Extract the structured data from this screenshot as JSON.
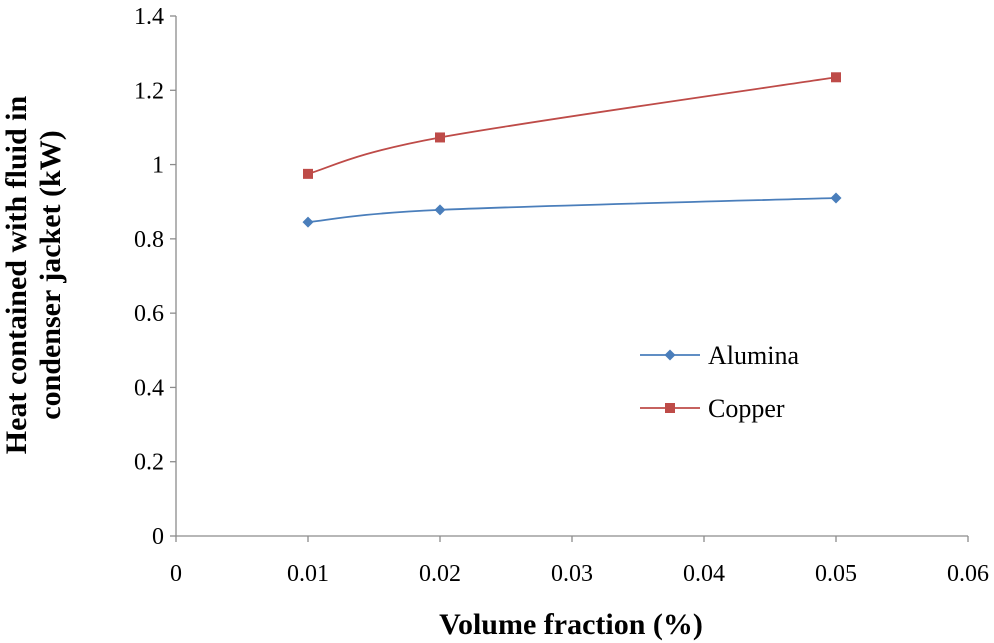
{
  "chart_data": {
    "type": "line",
    "xlabel": "Volume fraction (%)",
    "ylabel": "Heat contained with fluid in condenser jacket (kW)",
    "ylabel_lines": [
      "Heat contained with fluid in",
      "condenser jacket (kW)"
    ],
    "xlim": [
      0,
      0.06
    ],
    "ylim": [
      0,
      1.4
    ],
    "x_ticks": [
      "0",
      "0.01",
      "0.02",
      "0.03",
      "0.04",
      "0.05",
      "0.06"
    ],
    "y_ticks": [
      "0",
      "0.2",
      "0.4",
      "0.6",
      "0.8",
      "1",
      "1.2",
      "1.4"
    ],
    "grid": false,
    "legend_position": "right-middle",
    "series": [
      {
        "name": "Alumina",
        "color": "#4a7ebb",
        "marker": "diamond",
        "x": [
          0.01,
          0.02,
          0.05
        ],
        "y": [
          0.845,
          0.878,
          0.91
        ]
      },
      {
        "name": "Copper",
        "color": "#be4b48",
        "marker": "square",
        "x": [
          0.01,
          0.02,
          0.05
        ],
        "y": [
          0.975,
          1.073,
          1.235
        ]
      }
    ]
  }
}
